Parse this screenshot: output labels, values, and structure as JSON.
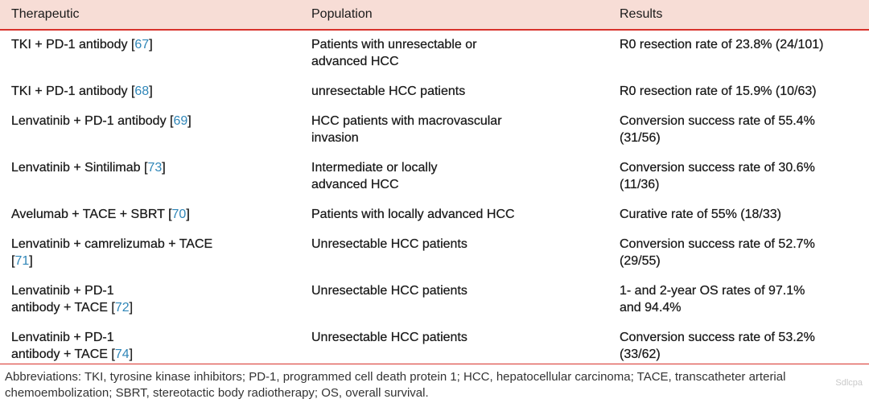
{
  "table": {
    "headers": [
      "Therapeutic",
      "Population",
      "Results"
    ],
    "rows": [
      {
        "therapeutic_lines": [
          "TKI + PD-1 antibody ["
        ],
        "ref": "67",
        "after_ref": "]",
        "population_lines": [
          "Patients with unresectable or",
          "advanced HCC"
        ],
        "results_lines": [
          "R0 resection rate of 23.8% (24/101)"
        ]
      },
      {
        "therapeutic_lines": [
          "TKI + PD-1 antibody ["
        ],
        "ref": "68",
        "after_ref": "]",
        "population_lines": [
          "unresectable HCC patients"
        ],
        "results_lines": [
          "R0 resection rate of 15.9% (10/63)"
        ]
      },
      {
        "therapeutic_lines": [
          "Lenvatinib + PD-1 antibody ["
        ],
        "ref": "69",
        "after_ref": "]",
        "population_lines": [
          "HCC patients with macrovascular",
          "invasion"
        ],
        "results_lines": [
          "Conversion success rate of 55.4%",
          "(31/56)"
        ]
      },
      {
        "therapeutic_lines": [
          "Lenvatinib + Sintilimab ["
        ],
        "ref": "73",
        "after_ref": "]",
        "population_lines": [
          "Intermediate or locally",
          "advanced HCC"
        ],
        "results_lines": [
          "Conversion success rate of 30.6%",
          "(11/36)"
        ]
      },
      {
        "therapeutic_lines": [
          "Avelumab + TACE + SBRT ["
        ],
        "ref": "70",
        "after_ref": "]",
        "population_lines": [
          "Patients with locally advanced HCC"
        ],
        "results_lines": [
          "Curative rate of 55% (18/33)"
        ]
      },
      {
        "therapeutic_lines": [
          "Lenvatinib + camrelizumab + TACE",
          "["
        ],
        "ref": "71",
        "after_ref": "]",
        "population_lines": [
          "Unresectable HCC patients"
        ],
        "results_lines": [
          "Conversion success rate of 52.7%",
          "(29/55)"
        ]
      },
      {
        "therapeutic_lines": [
          "Lenvatinib + PD-1",
          "antibody + TACE ["
        ],
        "ref": "72",
        "after_ref": "]",
        "population_lines": [
          "Unresectable HCC patients"
        ],
        "results_lines": [
          "1- and 2-year OS rates of 97.1%",
          "and 94.4%"
        ]
      },
      {
        "therapeutic_lines": [
          "Lenvatinib + PD-1",
          "antibody + TACE ["
        ],
        "ref": "74",
        "after_ref": "]",
        "population_lines": [
          "Unresectable HCC patients"
        ],
        "results_lines": [
          "Conversion success rate of 53.2%",
          "(33/62)"
        ]
      }
    ]
  },
  "footnote": "Abbreviations: TKI, tyrosine kinase inhibitors; PD-1, programmed cell death protein 1; HCC, hepatocellular carcinoma; TACE, transcatheter arterial chemoembolization; SBRT, stereotactic body radiotherapy; OS, overall survival.",
  "watermark": "Sdlcpa",
  "colors": {
    "header_bg": "#f7ddd6",
    "rule": "#d8322c",
    "ref_link": "#2f86b8"
  }
}
